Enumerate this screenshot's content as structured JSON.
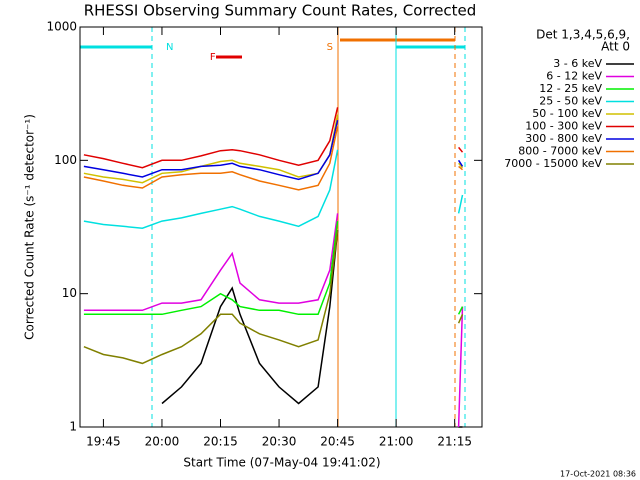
{
  "chart_data": {
    "type": "line",
    "title": "RHESSI Observing Summary Count Rates, Corrected",
    "ylabel": "Corrected Count Rate (s⁻¹ detector⁻¹)",
    "xlabel": "Start Time (07-May-04 19:41:02)",
    "legend_title": [
      "Det 1,3,4,5,6,9,",
      "Att 0"
    ],
    "legend": "upper right",
    "footer": "17-Oct-2021 08:36",
    "yscale": "log",
    "ylim": [
      1,
      1000
    ],
    "yticks": [
      1,
      10,
      100,
      1000
    ],
    "xlim": [
      "19:39",
      "21:22"
    ],
    "xticks": [
      "19:45",
      "20:00",
      "20:15",
      "20:30",
      "20:45",
      "21:00",
      "21:15"
    ],
    "annotations": [
      {
        "text": "N",
        "x": "20:02",
        "color": "#00e0e0"
      },
      {
        "text": "F",
        "x": "20:13",
        "color": "#e00000"
      },
      {
        "text": "S",
        "x": "20:43",
        "color": "#f07000"
      }
    ],
    "x": [
      "19:40",
      "19:45",
      "19:50",
      "19:55",
      "20:00",
      "20:05",
      "20:10",
      "20:15",
      "20:18",
      "20:20",
      "20:25",
      "20:30",
      "20:35",
      "20:40",
      "20:43",
      "20:45",
      "21:00",
      "21:16",
      "21:17"
    ],
    "series": [
      {
        "name": "3 - 6 keV",
        "color": "#000000",
        "values": [
          null,
          null,
          null,
          null,
          1.5,
          2,
          3,
          8,
          11,
          7,
          3,
          2,
          1.5,
          2,
          8,
          30,
          null,
          1,
          1
        ]
      },
      {
        "name": "6 - 12 keV",
        "color": "#e000e0",
        "values": [
          7.5,
          7.5,
          7.5,
          7.5,
          8.5,
          8.5,
          9,
          15,
          20,
          12,
          9,
          8.5,
          8.5,
          9,
          15,
          40,
          null,
          1,
          8
        ]
      },
      {
        "name": "12 - 25 keV",
        "color": "#00f000",
        "values": [
          7,
          7,
          7,
          7,
          7,
          7.5,
          8,
          10,
          9,
          8,
          7.5,
          7.5,
          7,
          7,
          12,
          35,
          null,
          7,
          8
        ]
      },
      {
        "name": "25 - 50 keV",
        "color": "#00e0e0",
        "values": [
          35,
          33,
          32,
          31,
          35,
          37,
          40,
          43,
          45,
          43,
          38,
          35,
          32,
          38,
          60,
          120,
          null,
          40,
          55
        ]
      },
      {
        "name": "50 - 100 keV",
        "color": "#d0c000",
        "values": [
          80,
          75,
          72,
          68,
          80,
          82,
          90,
          98,
          100,
          95,
          90,
          85,
          75,
          80,
          110,
          220,
          null,
          95,
          88
        ]
      },
      {
        "name": "100 - 300 keV",
        "color": "#e00000",
        "values": [
          110,
          103,
          95,
          88,
          100,
          100,
          108,
          118,
          120,
          118,
          110,
          100,
          92,
          100,
          140,
          250,
          null,
          125,
          115
        ]
      },
      {
        "name": "300 - 800 keV",
        "color": "#0000e0",
        "values": [
          90,
          85,
          80,
          75,
          85,
          85,
          90,
          92,
          95,
          90,
          85,
          78,
          72,
          80,
          110,
          200,
          null,
          100,
          90
        ]
      },
      {
        "name": "800 - 7000 keV",
        "color": "#f07000",
        "values": [
          75,
          70,
          65,
          62,
          75,
          78,
          80,
          80,
          82,
          78,
          70,
          65,
          60,
          65,
          95,
          180,
          null,
          90,
          85
        ]
      },
      {
        "name": "7000 - 15000 keV",
        "color": "#808000",
        "values": [
          4,
          3.5,
          3.3,
          3,
          3.5,
          4,
          5,
          7,
          7,
          6,
          5,
          4.5,
          4,
          4.5,
          10,
          30,
          null,
          6,
          7
        ]
      }
    ]
  }
}
